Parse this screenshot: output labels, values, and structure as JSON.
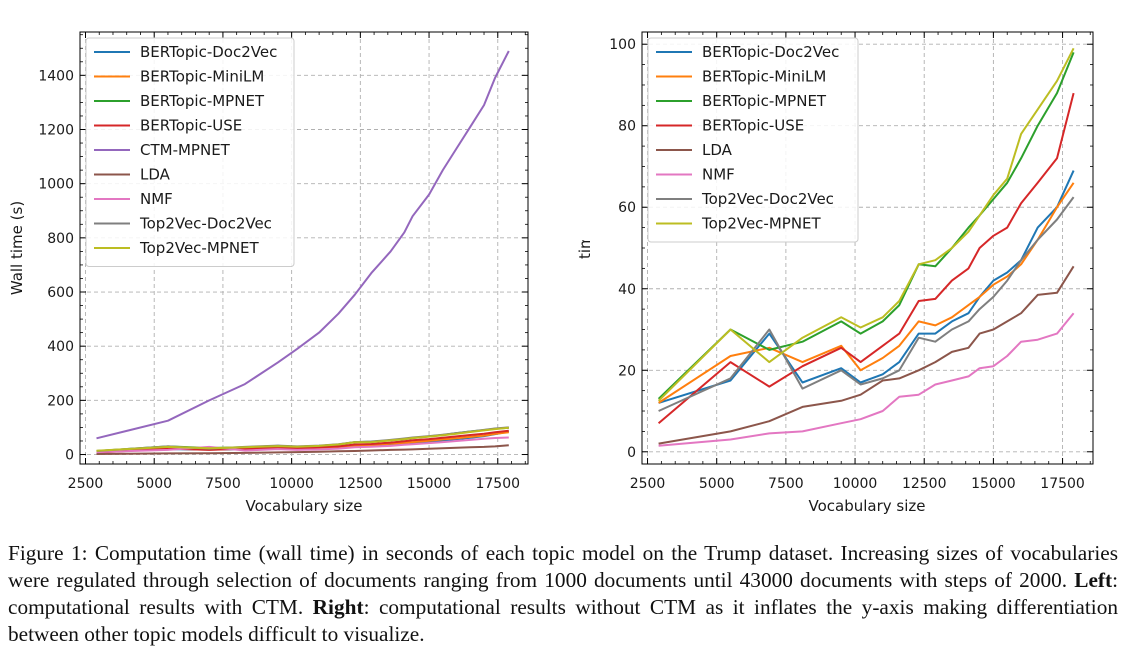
{
  "colors": {
    "BERTopic-Doc2Vec": "#1f77b4",
    "BERTopic-MiniLM": "#ff7f0e",
    "BERTopic-MPNET": "#2ca02c",
    "BERTopic-USE": "#d62728",
    "CTM-MPNET": "#9467bd",
    "LDA": "#8c564b",
    "NMF": "#e377c2",
    "Top2Vec-Doc2Vec": "#7f7f7f",
    "Top2Vec-MPNET": "#bcbd22"
  },
  "chart_data": [
    {
      "type": "line",
      "xlabel": "Vocabulary size",
      "ylabel": "Wall time (s)",
      "xlim": [
        2300,
        18600
      ],
      "ylim": [
        -35,
        1560
      ],
      "xticks": [
        2500,
        5000,
        7500,
        10000,
        12500,
        15000,
        17500
      ],
      "xtick_labels": [
        "2500",
        "5000",
        "7500",
        "10000",
        "12500",
        "15000",
        "17500"
      ],
      "yticks": [
        0,
        200,
        400,
        600,
        800,
        1000,
        1200,
        1400
      ],
      "ytick_labels": [
        "0",
        "200",
        "400",
        "600",
        "800",
        "1000",
        "1200",
        "1400"
      ],
      "legend_location": "top-left",
      "x": [
        2900,
        5500,
        7000,
        8300,
        9500,
        10200,
        11000,
        11700,
        12300,
        12900,
        13600,
        14100,
        14400,
        15000,
        15500,
        16000,
        16500,
        17000,
        17400,
        17900
      ],
      "series": [
        {
          "name": "BERTopic-Doc2Vec",
          "values": [
            12,
            20,
            18,
            20,
            22,
            20,
            23,
            26,
            32,
            33,
            38,
            41,
            43,
            48,
            52,
            57,
            62,
            68,
            75,
            85
          ]
        },
        {
          "name": "BERTopic-MiniLM",
          "values": [
            11,
            22,
            24,
            22,
            25,
            22,
            25,
            28,
            33,
            35,
            40,
            43,
            46,
            51,
            56,
            60,
            65,
            70,
            76,
            82
          ]
        },
        {
          "name": "BERTopic-MPNET",
          "values": [
            13,
            30,
            24,
            27,
            32,
            29,
            32,
            37,
            46,
            47,
            53,
            57,
            61,
            67,
            72,
            79,
            85,
            90,
            95,
            99
          ]
        },
        {
          "name": "BERTopic-USE",
          "values": [
            7,
            22,
            17,
            21,
            26,
            23,
            27,
            30,
            37,
            39,
            44,
            49,
            53,
            57,
            62,
            67,
            72,
            77,
            82,
            88
          ]
        },
        {
          "name": "CTM-MPNET",
          "values": [
            60,
            125,
            200,
            260,
            340,
            390,
            450,
            520,
            590,
            670,
            750,
            820,
            880,
            960,
            1050,
            1130,
            1210,
            1290,
            1390,
            1490
          ]
        },
        {
          "name": "LDA",
          "values": [
            2,
            4,
            5,
            6,
            8,
            9,
            10,
            12,
            13,
            15,
            17,
            18,
            19,
            21,
            23,
            25,
            27,
            28,
            30,
            34
          ]
        },
        {
          "name": "NMF",
          "values": [
            9,
            17,
            28,
            15,
            20,
            17,
            19,
            22,
            27,
            29,
            32,
            36,
            38,
            42,
            46,
            50,
            54,
            58,
            61,
            63
          ]
        },
        {
          "name": "Top2Vec-Doc2Vec",
          "values": [
            13,
            30,
            22,
            28,
            33,
            30,
            33,
            38,
            46,
            48,
            54,
            59,
            63,
            68,
            73,
            79,
            85,
            91,
            96,
            100
          ]
        },
        {
          "name": "Top2Vec-MPNET",
          "values": [
            14,
            28,
            23,
            27,
            31,
            29,
            32,
            37,
            45,
            46,
            52,
            57,
            61,
            66,
            71,
            77,
            83,
            89,
            94,
            99
          ]
        }
      ]
    },
    {
      "type": "line",
      "xlabel": "Vocabulary size",
      "ylabel": "Wall time (s)",
      "xlim": [
        2300,
        18600
      ],
      "ylim": [
        -3,
        103
      ],
      "xticks": [
        2500,
        5000,
        7500,
        10000,
        12500,
        15000,
        17500
      ],
      "xtick_labels": [
        "2500",
        "5000",
        "7500",
        "10000",
        "12500",
        "15000",
        "17500"
      ],
      "yticks": [
        0,
        20,
        40,
        60,
        80,
        100
      ],
      "ytick_labels": [
        "0",
        "20",
        "40",
        "60",
        "80",
        "100"
      ],
      "legend_location": "top-left",
      "series": [
        {
          "name": "BERTopic-Doc2Vec",
          "x": [
            2900,
            5500,
            6900,
            8100,
            9500,
            10200,
            11000,
            11600,
            12300,
            12900,
            13500,
            14100,
            14500,
            15000,
            15500,
            16000,
            16600,
            17300,
            17900
          ],
          "values": [
            12,
            17.5,
            29,
            17,
            20.5,
            17,
            19,
            22,
            29,
            29,
            32,
            34,
            38,
            42,
            44,
            47,
            55,
            60,
            69
          ]
        },
        {
          "name": "BERTopic-MiniLM",
          "x": [
            2900,
            5500,
            6900,
            8100,
            9500,
            10200,
            11000,
            11600,
            12300,
            12900,
            13500,
            14100,
            14500,
            15000,
            15500,
            16000,
            16600,
            17300,
            17900
          ],
          "values": [
            12,
            23.5,
            25.5,
            22,
            26,
            20,
            23,
            26,
            32,
            31,
            33,
            36,
            38,
            41,
            43,
            46,
            52,
            60,
            66
          ]
        },
        {
          "name": "BERTopic-MPNET",
          "x": [
            2900,
            5500,
            6900,
            8100,
            9500,
            10200,
            11000,
            11600,
            12300,
            12900,
            13500,
            14100,
            14500,
            15000,
            15500,
            16000,
            16600,
            17300,
            17900
          ],
          "values": [
            13,
            30,
            25,
            27,
            32,
            29,
            32,
            36,
            46,
            45.5,
            50,
            55,
            58,
            62,
            66,
            72,
            80,
            88,
            98
          ]
        },
        {
          "name": "BERTopic-USE",
          "x": [
            2900,
            5500,
            6900,
            8100,
            9500,
            10200,
            11000,
            11600,
            12300,
            12900,
            13500,
            14100,
            14500,
            15000,
            15500,
            16000,
            16600,
            17300,
            17900
          ],
          "values": [
            7,
            22,
            16,
            21,
            25.5,
            22,
            26,
            29,
            37,
            37.5,
            42,
            45,
            50,
            53,
            55,
            61,
            66,
            72,
            88
          ]
        },
        {
          "name": "LDA",
          "x": [
            2900,
            5500,
            6900,
            8100,
            9500,
            10200,
            11000,
            11600,
            12300,
            12900,
            13500,
            14100,
            14500,
            15000,
            15500,
            16000,
            16600,
            17300,
            17900
          ],
          "values": [
            2,
            5,
            7.5,
            11,
            12.5,
            14,
            17.5,
            18,
            20,
            22,
            24.5,
            25.5,
            29,
            30,
            32,
            34,
            38.5,
            39,
            45.5
          ]
        },
        {
          "name": "NMF",
          "x": [
            2900,
            5500,
            6900,
            8100,
            9500,
            10200,
            11000,
            11600,
            12300,
            12900,
            13500,
            14100,
            14500,
            15000,
            15500,
            16000,
            16600,
            17300,
            17900
          ],
          "values": [
            1.5,
            3,
            4.5,
            5,
            7,
            8,
            10,
            13.5,
            14,
            16.5,
            17.5,
            18.5,
            20.5,
            21,
            23.5,
            27,
            27.5,
            29,
            34
          ]
        },
        {
          "name": "Top2Vec-Doc2Vec",
          "x": [
            2900,
            5500,
            6900,
            8100,
            9500,
            10200,
            11000,
            11600,
            12300,
            12900,
            13500,
            14100,
            14500,
            15000,
            15500,
            16000,
            16600,
            17300,
            17900
          ],
          "values": [
            10,
            18,
            30,
            15.5,
            20,
            16.5,
            18,
            20,
            28,
            27,
            30,
            32,
            35,
            38,
            42,
            47,
            52,
            57,
            62.5
          ]
        },
        {
          "name": "Top2Vec-MPNET",
          "x": [
            2900,
            5500,
            6900,
            8100,
            9500,
            10200,
            11000,
            11600,
            12300,
            12900,
            13500,
            14100,
            14500,
            15000,
            15500,
            16000,
            16600,
            17300,
            17900
          ],
          "values": [
            12.5,
            30,
            22,
            28,
            33,
            30.5,
            33,
            37,
            46,
            47,
            50,
            54,
            58,
            63,
            67,
            78,
            84,
            91,
            99
          ]
        }
      ]
    }
  ],
  "caption": {
    "part1": "Figure 1: Computation time (wall time) in seconds of each topic model on the Trump dataset. Increasing sizes of vocabularies were regulated through selection of documents ranging from 1000 documents until 43000 documents with steps of 2000. ",
    "left_label": "Left",
    "part2": ": computational results with CTM. ",
    "right_label": "Right",
    "part3": ": computational results without CTM as it inflates the y-axis making differentiation between other topic models difficult to visualize."
  }
}
